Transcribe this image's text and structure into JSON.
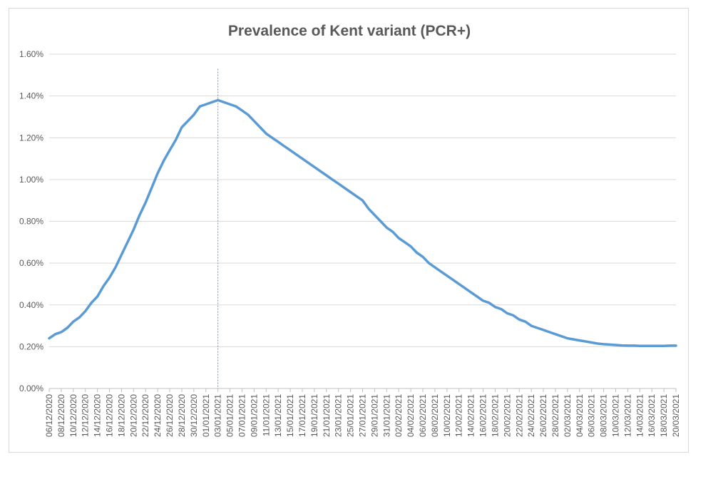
{
  "chart_data": {
    "type": "line",
    "title": "Prevalence of Kent variant (PCR+)",
    "xlabel": "",
    "ylabel": "",
    "ylim": [
      0,
      0.016
    ],
    "y_tick_format": "percent",
    "yticks": [
      "0.00%",
      "0.20%",
      "0.40%",
      "0.60%",
      "0.80%",
      "1.00%",
      "1.20%",
      "1.40%",
      "1.60%"
    ],
    "x_start": "06/12/2020",
    "x_end": "20/03/2021",
    "x_tick_labels": [
      "06/12/2020",
      "08/12/2020",
      "10/12/2020",
      "12/12/2020",
      "14/12/2020",
      "16/12/2020",
      "18/12/2020",
      "20/12/2020",
      "22/12/2020",
      "24/12/2020",
      "26/12/2020",
      "28/12/2020",
      "30/12/2020",
      "01/01/2021",
      "03/01/2021",
      "05/01/2021",
      "07/01/2021",
      "09/01/2021",
      "11/01/2021",
      "13/01/2021",
      "15/01/2021",
      "17/01/2021",
      "19/01/2021",
      "21/01/2021",
      "23/01/2021",
      "25/01/2021",
      "27/01/2021",
      "29/01/2021",
      "31/01/2021",
      "02/02/2021",
      "04/02/2021",
      "06/02/2021",
      "08/02/2021",
      "10/02/2021",
      "12/02/2021",
      "14/02/2021",
      "16/02/2021",
      "18/02/2021",
      "20/02/2021",
      "22/02/2021",
      "24/02/2021",
      "26/02/2021",
      "28/02/2021",
      "02/03/2021",
      "04/03/2021",
      "06/03/2021",
      "08/03/2021",
      "10/03/2021",
      "12/03/2021",
      "14/03/2021",
      "16/03/2021",
      "18/03/2021",
      "20/03/2021"
    ],
    "grid": "horizontal",
    "legend": "none",
    "peak_marker_date": "03/01/2021",
    "series": [
      {
        "color": "#5B9BD5",
        "x": [
          "06/12/2020",
          "07/12/2020",
          "08/12/2020",
          "09/12/2020",
          "10/12/2020",
          "11/12/2020",
          "12/12/2020",
          "13/12/2020",
          "14/12/2020",
          "15/12/2020",
          "16/12/2020",
          "17/12/2020",
          "18/12/2020",
          "19/12/2020",
          "20/12/2020",
          "21/12/2020",
          "22/12/2020",
          "23/12/2020",
          "24/12/2020",
          "25/12/2020",
          "26/12/2020",
          "27/12/2020",
          "28/12/2020",
          "29/12/2020",
          "30/12/2020",
          "31/12/2020",
          "01/01/2021",
          "02/01/2021",
          "03/01/2021",
          "04/01/2021",
          "05/01/2021",
          "06/01/2021",
          "07/01/2021",
          "08/01/2021",
          "09/01/2021",
          "10/01/2021",
          "11/01/2021",
          "12/01/2021",
          "13/01/2021",
          "14/01/2021",
          "15/01/2021",
          "16/01/2021",
          "17/01/2021",
          "18/01/2021",
          "19/01/2021",
          "20/01/2021",
          "21/01/2021",
          "22/01/2021",
          "23/01/2021",
          "24/01/2021",
          "25/01/2021",
          "26/01/2021",
          "27/01/2021",
          "28/01/2021",
          "29/01/2021",
          "30/01/2021",
          "31/01/2021",
          "01/02/2021",
          "02/02/2021",
          "03/02/2021",
          "04/02/2021",
          "05/02/2021",
          "06/02/2021",
          "07/02/2021",
          "08/02/2021",
          "09/02/2021",
          "10/02/2021",
          "11/02/2021",
          "12/02/2021",
          "13/02/2021",
          "14/02/2021",
          "15/02/2021",
          "16/02/2021",
          "17/02/2021",
          "18/02/2021",
          "19/02/2021",
          "20/02/2021",
          "21/02/2021",
          "22/02/2021",
          "23/02/2021",
          "24/02/2021",
          "25/02/2021",
          "26/02/2021",
          "27/02/2021",
          "28/02/2021",
          "01/03/2021",
          "02/03/2021",
          "03/03/2021",
          "04/03/2021",
          "05/03/2021",
          "06/03/2021",
          "07/03/2021",
          "08/03/2021",
          "09/03/2021",
          "10/03/2021",
          "11/03/2021",
          "12/03/2021",
          "13/03/2021",
          "14/03/2021",
          "15/03/2021",
          "16/03/2021",
          "17/03/2021",
          "18/03/2021",
          "19/03/2021",
          "20/03/2021"
        ],
        "values": [
          0.0024,
          0.0026,
          0.0027,
          0.0029,
          0.0032,
          0.0034,
          0.0037,
          0.0041,
          0.0044,
          0.0049,
          0.0053,
          0.0058,
          0.0064,
          0.007,
          0.0076,
          0.0083,
          0.0089,
          0.0096,
          0.0103,
          0.0109,
          0.0114,
          0.0119,
          0.0125,
          0.0128,
          0.0131,
          0.0135,
          0.0136,
          0.0137,
          0.0138,
          0.0137,
          0.0136,
          0.0135,
          0.0133,
          0.0131,
          0.0128,
          0.0125,
          0.0122,
          0.012,
          0.0118,
          0.0116,
          0.0114,
          0.0112,
          0.011,
          0.0108,
          0.0106,
          0.0104,
          0.0102,
          0.01,
          0.0098,
          0.0096,
          0.0094,
          0.0092,
          0.009,
          0.0086,
          0.0083,
          0.008,
          0.0077,
          0.0075,
          0.0072,
          0.007,
          0.0068,
          0.0065,
          0.0063,
          0.006,
          0.0058,
          0.0056,
          0.0054,
          0.0052,
          0.005,
          0.0048,
          0.0046,
          0.0044,
          0.0042,
          0.0041,
          0.0039,
          0.0038,
          0.0036,
          0.0035,
          0.0033,
          0.0032,
          0.003,
          0.0029,
          0.0028,
          0.0027,
          0.0026,
          0.0025,
          0.0024,
          0.00235,
          0.0023,
          0.00225,
          0.0022,
          0.00215,
          0.00212,
          0.0021,
          0.00208,
          0.00206,
          0.00205,
          0.00205,
          0.00204,
          0.00204,
          0.00204,
          0.00204,
          0.00204,
          0.00205,
          0.00205
        ]
      }
    ]
  }
}
